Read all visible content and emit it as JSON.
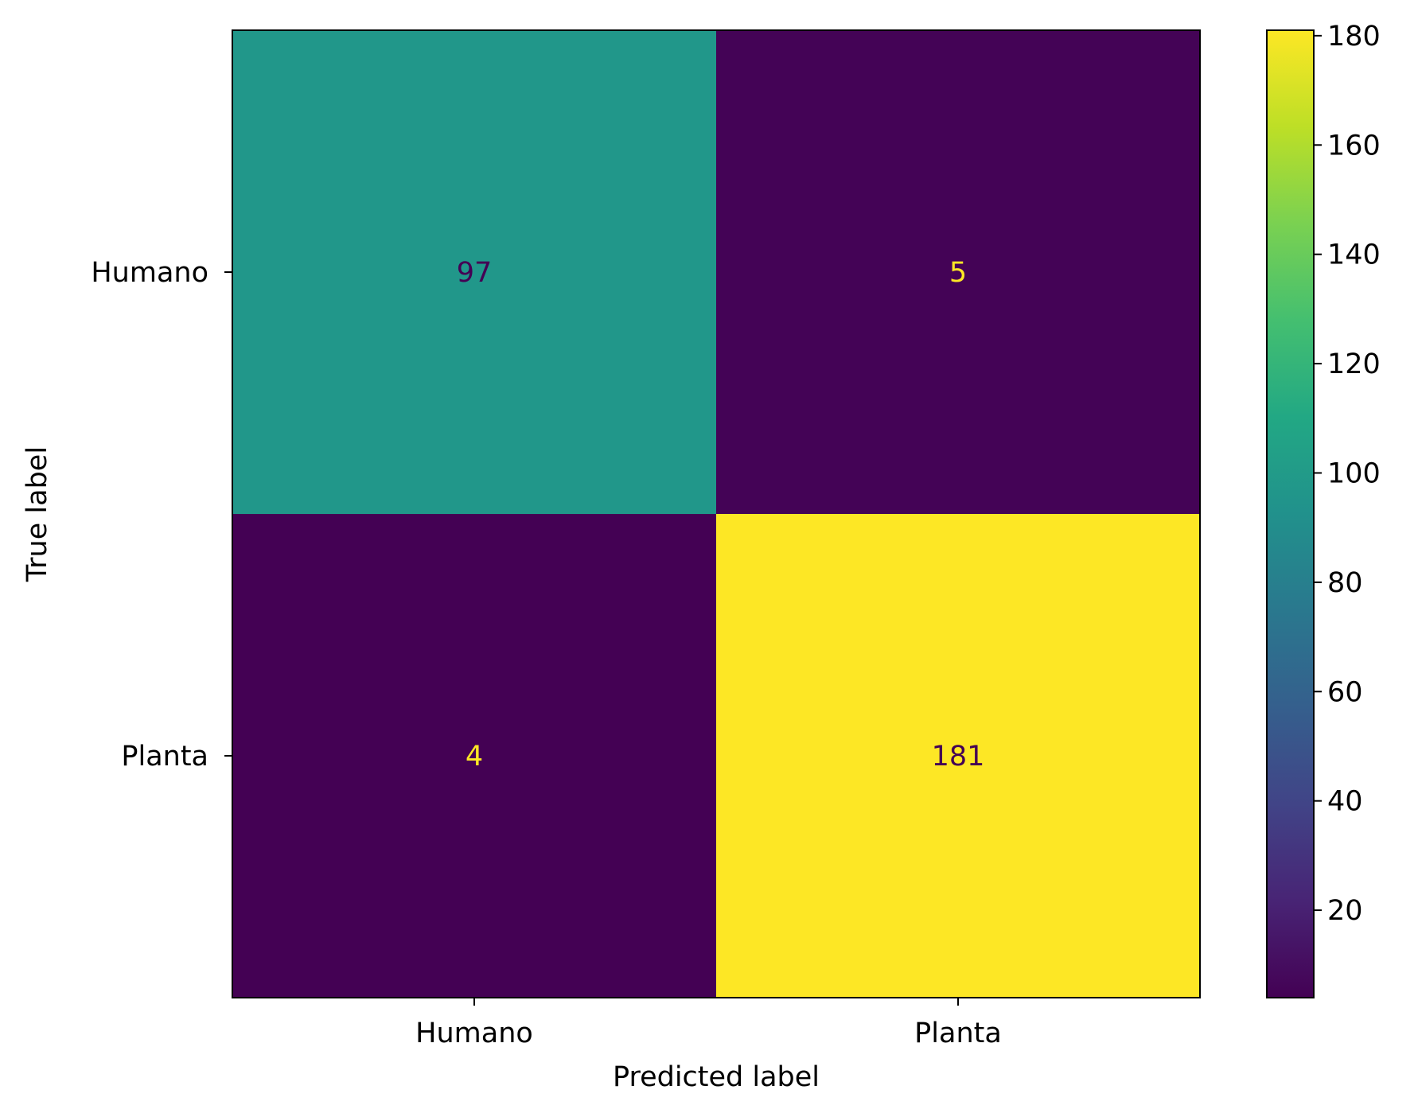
{
  "chart_data": {
    "type": "heatmap",
    "title": "",
    "xlabel": "Predicted label",
    "ylabel": "True label",
    "x_categories": [
      "Humano",
      "Planta"
    ],
    "y_categories": [
      "Humano",
      "Planta"
    ],
    "values": [
      [
        97,
        5
      ],
      [
        4,
        181
      ]
    ],
    "colormap": "viridis",
    "value_range": [
      4,
      181
    ],
    "colorbar": {
      "ticks": [
        20,
        40,
        60,
        80,
        100,
        120,
        140,
        160,
        180
      ],
      "tick_labels": [
        "20",
        "40",
        "60",
        "80",
        "100",
        "120",
        "140",
        "160",
        "180"
      ]
    },
    "grid": false,
    "colors": {
      "low": "#440154",
      "high": "#fde725",
      "text_on_dark": "#fde725",
      "text_on_light": "#440154"
    }
  }
}
